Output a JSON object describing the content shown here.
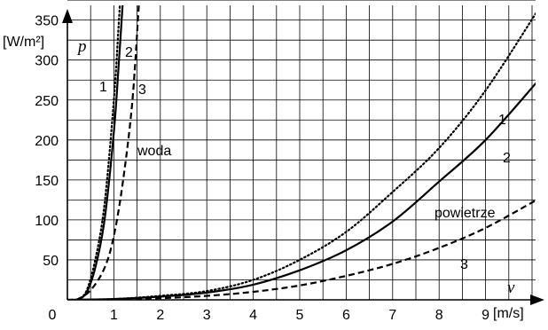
{
  "chart_data": {
    "type": "line",
    "title": "",
    "x_unit_label": "[m/s]",
    "y_unit_label": "[W/m²]",
    "x_variable": "v",
    "y_variable": "p",
    "xlim": [
      0,
      10.2
    ],
    "ylim": [
      0,
      380
    ],
    "x_ticks": [
      0,
      1,
      2,
      3,
      4,
      5,
      6,
      7,
      8,
      9
    ],
    "y_ticks": [
      50,
      100,
      150,
      200,
      250,
      300,
      350
    ],
    "grid": true,
    "groups": [
      {
        "label": "woda",
        "series": [
          {
            "name": "1",
            "style": "dotted",
            "x": [
              0.2,
              0.4,
              0.6,
              0.8,
              1.0,
              1.1,
              1.2
            ],
            "y": [
              0,
              10,
              50,
              120,
              250,
              340,
              440
            ]
          },
          {
            "name": "2",
            "style": "solid",
            "x": [
              0.2,
              0.4,
              0.6,
              0.8,
              1.0,
              1.1,
              1.2
            ],
            "y": [
              0,
              8,
              40,
              100,
              210,
              290,
              380
            ]
          },
          {
            "name": "3",
            "style": "dashed",
            "x": [
              0.2,
              0.5,
              0.8,
              1.0,
              1.2,
              1.4,
              1.55
            ],
            "y": [
              0,
              12,
              40,
              80,
              150,
              250,
              380
            ]
          }
        ]
      },
      {
        "label": "powietrze",
        "series": [
          {
            "name": "1",
            "style": "dotted",
            "x": [
              0,
              1,
              2,
              3,
              4,
              5,
              6,
              7,
              8,
              9,
              10.1
            ],
            "y": [
              0,
              1,
              5,
              11,
              25,
              50,
              85,
              135,
              190,
              262,
              360
            ]
          },
          {
            "name": "2",
            "style": "solid",
            "x": [
              0,
              1,
              2,
              3,
              4,
              5,
              6,
              7,
              8,
              9,
              10.1
            ],
            "y": [
              0,
              1,
              4,
              9,
              19,
              37,
              62,
              98,
              148,
              200,
              272
            ]
          },
          {
            "name": "3",
            "style": "dashed",
            "x": [
              0,
              1,
              2,
              3,
              4,
              5,
              6,
              7,
              8,
              9,
              10.1
            ],
            "y": [
              0,
              0.5,
              2,
              5,
              10,
              18,
              30,
              45,
              65,
              90,
              125
            ]
          }
        ]
      }
    ]
  }
}
